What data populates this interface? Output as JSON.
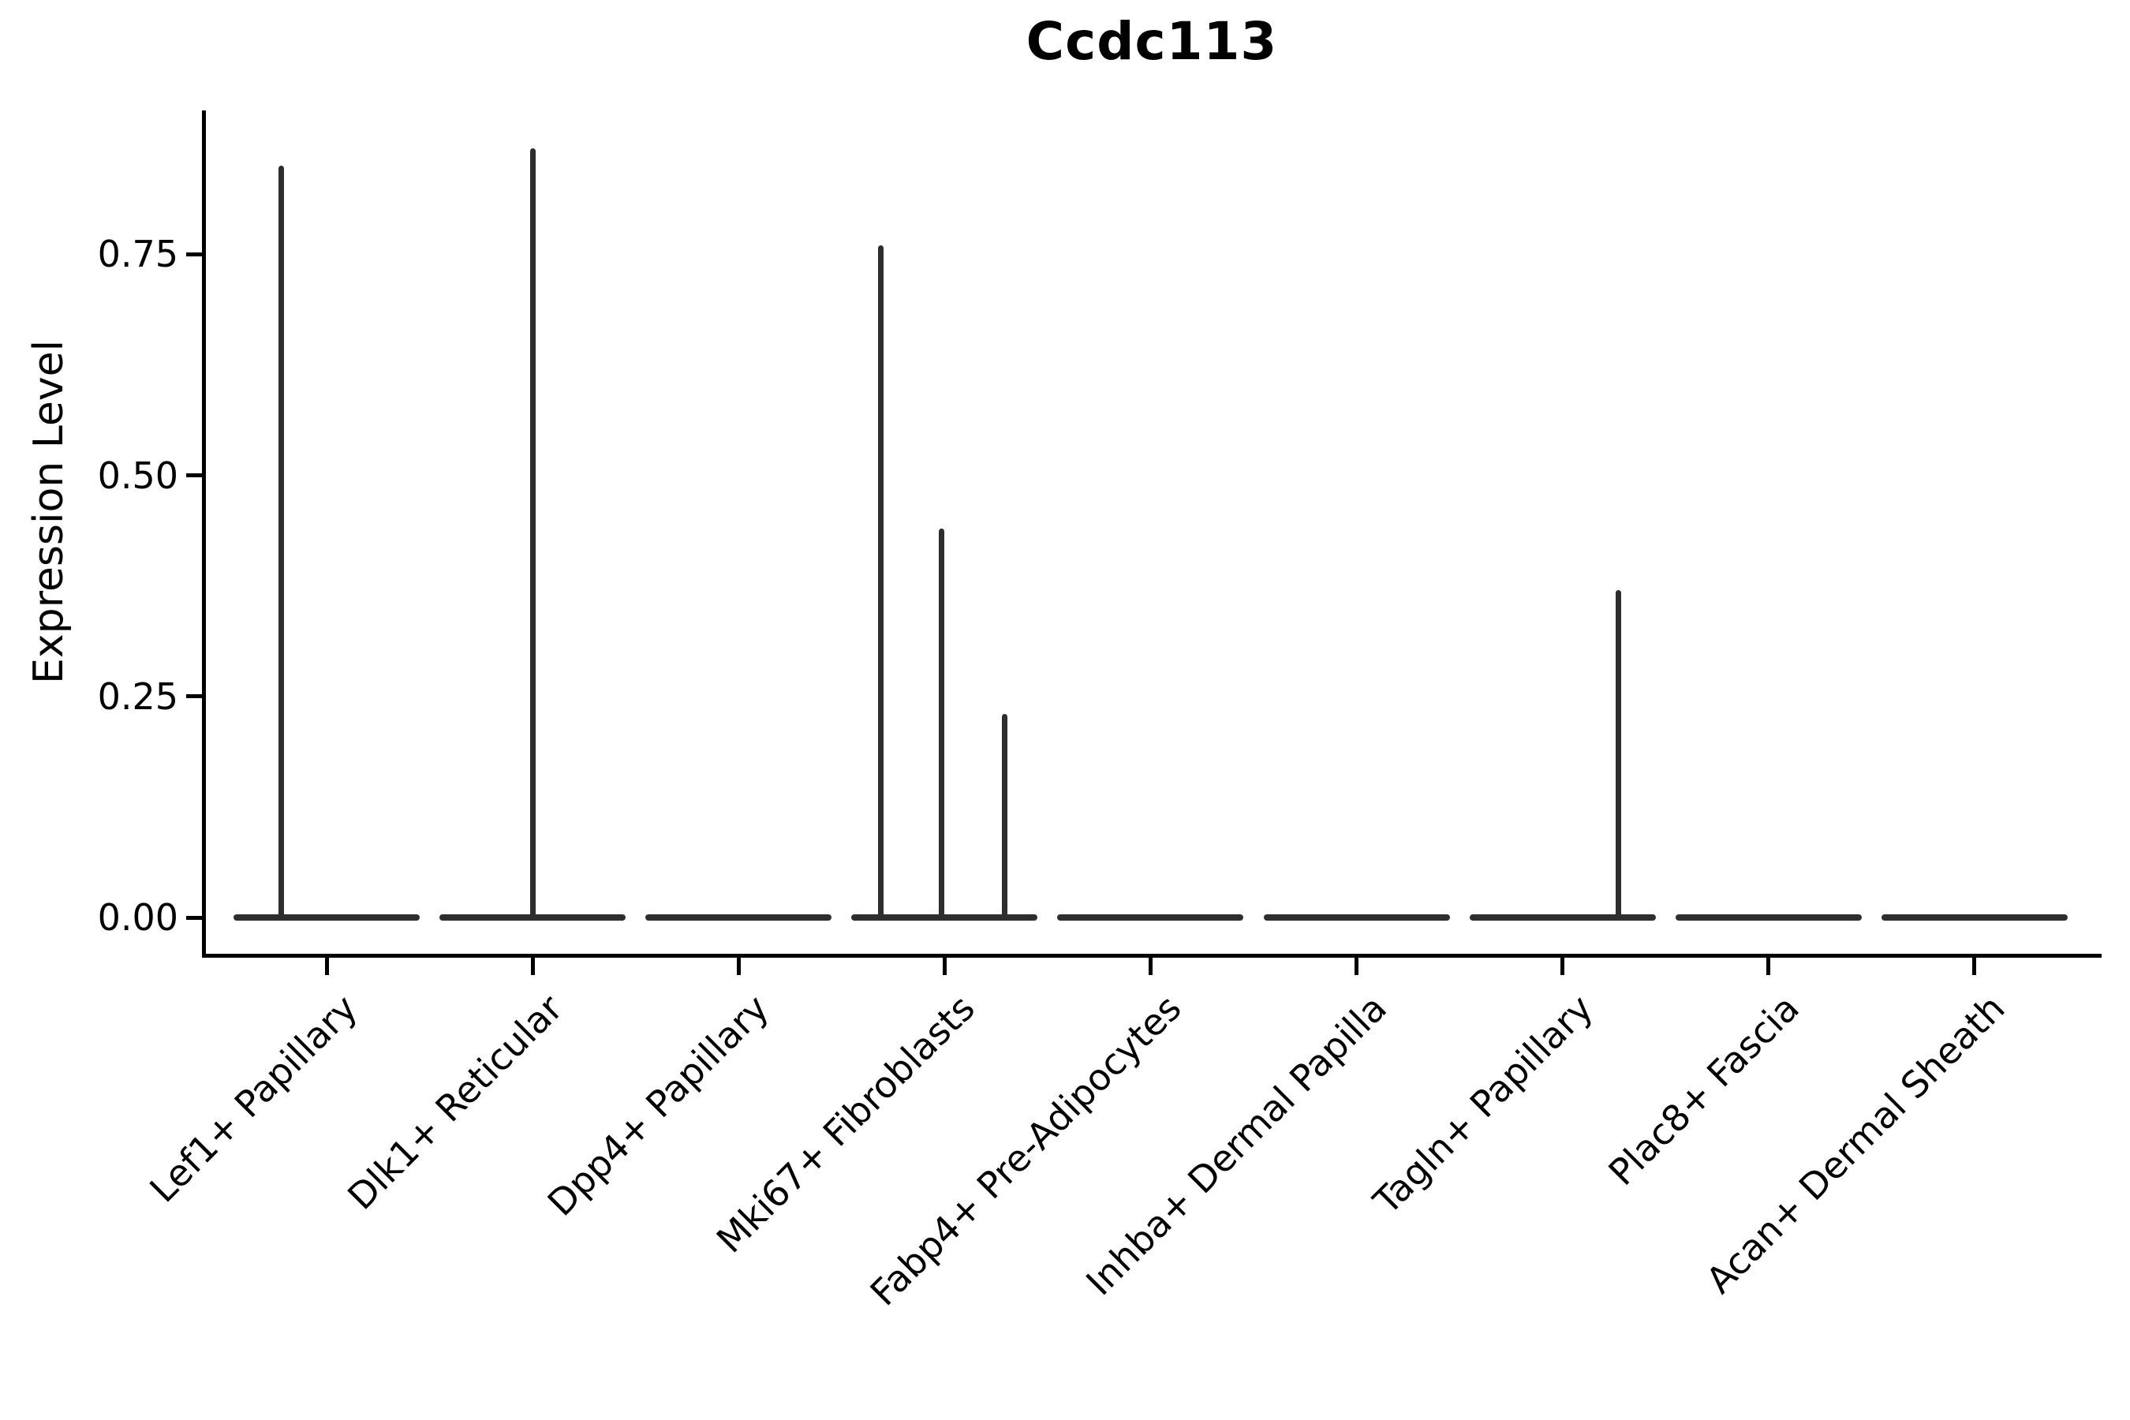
{
  "chart_data": {
    "type": "violin",
    "title": "Ccdc113",
    "xlabel": "",
    "ylabel": "Expression Level",
    "yticks": [
      "0.00",
      "0.25",
      "0.50",
      "0.75"
    ],
    "ytick_values": [
      0.0,
      0.25,
      0.5,
      0.75
    ],
    "ylim": [
      -0.04,
      0.91
    ],
    "grid": false,
    "legend": null,
    "categories": [
      "Lef1+ Papillary",
      "Dlk1+ Reticular",
      "Dpp4+ Papillary",
      "Mki67+ Fibroblasts",
      "Fabp4+ Pre-Adipocytes",
      "Inhba+ Dermal Papilla",
      "Tagln+ Papillary",
      "Plac8+ Fascia",
      "Acan+ Dermal Sheath"
    ],
    "violins": [
      {
        "category": "Lef1+ Papillary",
        "base_value": 0.0,
        "spikes": [
          {
            "offset_frac": -0.22,
            "value": 0.85
          }
        ]
      },
      {
        "category": "Dlk1+ Reticular",
        "base_value": 0.0,
        "spikes": [
          {
            "offset_frac": 0.0,
            "value": 0.87
          }
        ]
      },
      {
        "category": "Dpp4+ Papillary",
        "base_value": 0.0,
        "spikes": []
      },
      {
        "category": "Mki67+ Fibroblasts",
        "base_value": 0.0,
        "spikes": [
          {
            "offset_frac": -0.31,
            "value": 0.76
          },
          {
            "offset_frac": -0.015,
            "value": 0.44
          },
          {
            "offset_frac": 0.29,
            "value": 0.23
          }
        ]
      },
      {
        "category": "Fabp4+ Pre-Adipocytes",
        "base_value": 0.0,
        "spikes": []
      },
      {
        "category": "Inhba+ Dermal Papilla",
        "base_value": 0.0,
        "spikes": []
      },
      {
        "category": "Tagln+ Papillary",
        "base_value": 0.0,
        "spikes": [
          {
            "offset_frac": 0.27,
            "value": 0.37
          }
        ]
      },
      {
        "category": "Plac8+ Fascia",
        "base_value": 0.0,
        "spikes": []
      },
      {
        "category": "Acan+ Dermal Sheath",
        "base_value": 0.0,
        "spikes": []
      }
    ],
    "colors": {
      "violin": "#2e2e2e",
      "axis": "#000000",
      "text": "#000000",
      "background": "#ffffff"
    }
  }
}
